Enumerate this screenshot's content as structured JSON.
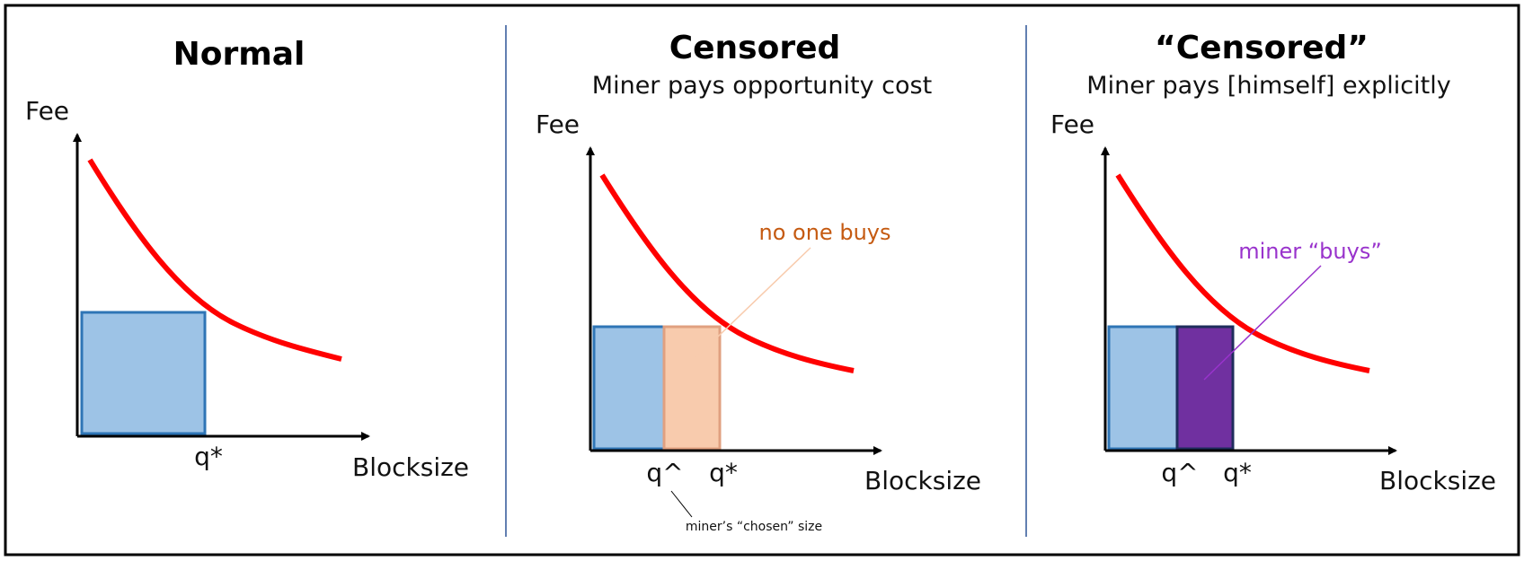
{
  "panels": [
    {
      "title": "Normal",
      "subtitle": "",
      "y_label": "Fee",
      "x_label": "Blocksize",
      "q_labels": [
        "q*"
      ]
    },
    {
      "title": "Censored",
      "subtitle": "Miner pays opportunity cost",
      "y_label": "Fee",
      "x_label": "Blocksize",
      "q_labels": [
        "q^",
        "q*"
      ],
      "annotation": "no one buys",
      "note": "miner’s “chosen” size"
    },
    {
      "title": "“Censored”",
      "subtitle": "Miner pays [himself] explicitly",
      "y_label": "Fee",
      "x_label": "Blocksize",
      "q_labels": [
        "q^",
        "q*"
      ],
      "annotation": "miner “buys”"
    }
  ],
  "colors": {
    "curve": "#ff0000",
    "block_fill": "#9dc3e6",
    "block_stroke": "#2e75b6",
    "unsold_fill": "#f8cbad",
    "unsold_stroke": "#e0a080",
    "annotation_orange": "#c55a11",
    "miner_fill": "#7030a0",
    "miner_stroke": "#1f2d5c",
    "annotation_purple": "#9933cc",
    "divider": "#2f5597"
  }
}
